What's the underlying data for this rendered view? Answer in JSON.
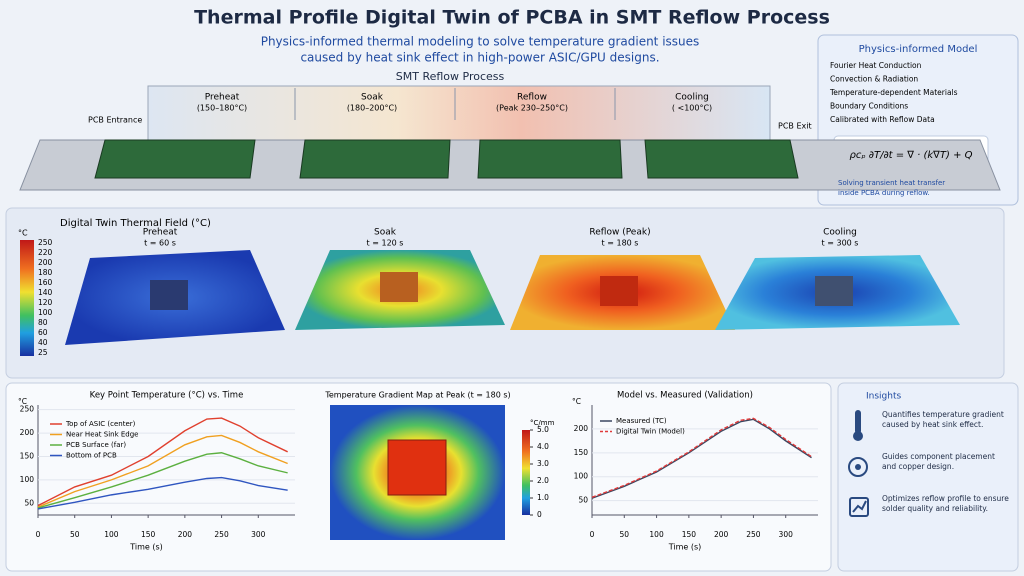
{
  "header": {
    "title": "Thermal Profile Digital Twin of PCBA in SMT Reflow Process",
    "subtitle_lines": [
      "Physics-informed thermal modeling to solve temperature gradient issues",
      "caused by heat sink effect in high-power ASIC/GPU designs."
    ]
  },
  "process": {
    "title": "SMT Reflow Process",
    "entrance": "PCB Entrance",
    "exit": "PCB Exit",
    "zones": [
      {
        "name": "Preheat",
        "range": "(150–180°C)"
      },
      {
        "name": "Soak",
        "range": "(180–200°C)"
      },
      {
        "name": "Reflow",
        "range": "(Peak 230–250°C)"
      },
      {
        "name": "Cooling",
        "range": "( <100°C)"
      }
    ]
  },
  "model": {
    "title": "Physics-informed Model",
    "items": [
      "Fourier Heat Conduction",
      "Convection & Radiation",
      "Temperature-dependent Materials",
      "Boundary Conditions",
      "Calibrated with Reflow Data"
    ],
    "equation": "ρcₚ ∂T/∂t = ∇ · (k∇T) + Q",
    "caption": "Solving transient heat transfer inside PCBA during reflow."
  },
  "thermal_field": {
    "title": "Digital Twin Thermal Field (°C)",
    "colorbar": {
      "unit": "°C",
      "labels": [
        "250",
        "220",
        "200",
        "180",
        "160",
        "140",
        "120",
        "100",
        "80",
        "60",
        "40",
        "25"
      ]
    },
    "panels": [
      {
        "name": "Preheat",
        "time": "t = 60 s"
      },
      {
        "name": "Soak",
        "time": "t = 120 s"
      },
      {
        "name": "Reflow (Peak)",
        "time": "t = 180 s"
      },
      {
        "name": "Cooling",
        "time": "t = 300 s"
      }
    ]
  },
  "gradient_map": {
    "title": "Temperature Gradient Map at Peak (t = 180 s)",
    "unit": "°C/mm",
    "lim": [
      0,
      5
    ],
    "ticks": [
      {
        "value": 5,
        "label": "5.0"
      },
      {
        "value": 4,
        "label": "4.0"
      },
      {
        "value": 3,
        "label": "3.0"
      },
      {
        "value": 2,
        "label": "2.0"
      },
      {
        "value": 1,
        "label": "1.0"
      },
      0
    ]
  },
  "insights": {
    "title": "Insights",
    "items": [
      "Quantifies temperature gradient caused by heat sink effect.",
      "Guides component placement and copper design.",
      "Optimizes reflow profile to ensure solder quality and reliability."
    ]
  },
  "chart_data": [
    {
      "type": "line",
      "title": "Key Point Temperature (°C) vs. Time",
      "xlabel": "Time (s)",
      "ylabel": "°C",
      "x": [
        0,
        50,
        100,
        150,
        200,
        230,
        250,
        275,
        300,
        340
      ],
      "xlim": [
        0,
        350
      ],
      "ylim": [
        25,
        260
      ],
      "xticks": [
        0,
        50,
        100,
        150,
        200,
        250,
        300
      ],
      "yticks": [
        50,
        100,
        150,
        200,
        250
      ],
      "series": [
        {
          "name": "Top of ASIC (center)",
          "color": "#e0402e",
          "values": [
            45,
            85,
            110,
            150,
            205,
            230,
            232,
            215,
            190,
            160
          ]
        },
        {
          "name": "Near Heat Sink Edge",
          "color": "#f0a020",
          "values": [
            42,
            75,
            100,
            130,
            175,
            192,
            195,
            180,
            160,
            135
          ]
        },
        {
          "name": "PCB Surface (far)",
          "color": "#5cb040",
          "values": [
            40,
            62,
            85,
            110,
            140,
            155,
            158,
            145,
            130,
            115
          ]
        },
        {
          "name": "Bottom of PCB",
          "color": "#2f55c0",
          "values": [
            38,
            52,
            68,
            80,
            95,
            103,
            105,
            98,
            88,
            78
          ]
        }
      ]
    },
    {
      "type": "line",
      "title": "Model vs. Measured (Validation)",
      "xlabel": "Time (s)",
      "ylabel": "°C",
      "x": [
        0,
        50,
        100,
        150,
        200,
        230,
        250,
        275,
        300,
        340
      ],
      "xlim": [
        0,
        350
      ],
      "ylim": [
        20,
        250
      ],
      "xticks": [
        0,
        50,
        100,
        150,
        200,
        250,
        300
      ],
      "yticks": [
        50,
        100,
        150,
        200
      ],
      "series": [
        {
          "name": "Measured (TC)",
          "color": "#3a4660",
          "values": [
            55,
            80,
            110,
            150,
            195,
            215,
            220,
            200,
            175,
            140
          ]
        },
        {
          "name": "Digital Twin (Model)",
          "color": "#e03a3a",
          "dashed": true,
          "values": [
            57,
            82,
            112,
            152,
            198,
            218,
            222,
            203,
            178,
            142
          ]
        }
      ]
    }
  ]
}
